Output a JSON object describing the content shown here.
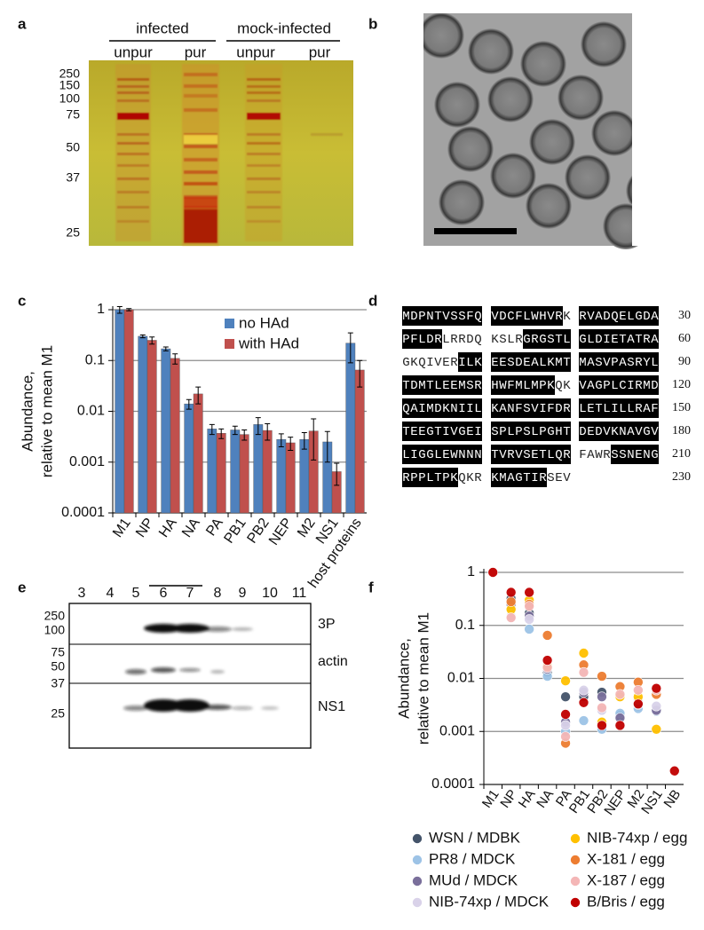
{
  "panel_labels": [
    "a",
    "b",
    "c",
    "d",
    "e",
    "f"
  ],
  "gel": {
    "groups": [
      "infected",
      "mock-infected"
    ],
    "lanes": [
      "unpur",
      "pur",
      "unpur",
      "pur"
    ],
    "markers": [
      250,
      150,
      100,
      75,
      50,
      37,
      25
    ]
  },
  "sequence": {
    "rows": [
      {
        "blocks": [
          "MDPNTVSSFQ",
          "VDCFLWHVRK",
          "RVADQELGDA"
        ],
        "number": 30
      },
      {
        "blocks": [
          "PFLDRLRRDQ",
          "KSLRGRGSTL",
          "GLDIETATRA"
        ],
        "number": 60
      },
      {
        "blocks": [
          "GKQIVERILK",
          "EESDEALKMT",
          "MASVPASRYL"
        ],
        "number": 90
      },
      {
        "blocks": [
          "TDMTLEEMSR",
          "HWFMLMPKQK",
          "VAGPLCIRMD"
        ],
        "number": 120
      },
      {
        "blocks": [
          "QAIMDKNIIL",
          "KANFSVIFDR",
          "LETLILLRAF"
        ],
        "number": 150
      },
      {
        "blocks": [
          "TEEGTIVGEI",
          "SPLPSLPGHT",
          "DEDVKNAVGV"
        ],
        "number": 180
      },
      {
        "blocks": [
          "LIGGLEWNNN",
          "TVRVSETLQR",
          "FAWRSSNENG"
        ],
        "number": 210
      },
      {
        "blocks": [
          "RPPLTPKQKR",
          "KMAGTIRSEV"
        ],
        "number": 230
      }
    ]
  },
  "blot": {
    "lanes": [
      3,
      4,
      5,
      6,
      7,
      8,
      9,
      10,
      11
    ],
    "markers": [
      250,
      100,
      75,
      50,
      37,
      25
    ],
    "labels": [
      "3P",
      "actin",
      "NS1"
    ]
  },
  "chart_data": [
    {
      "type": "bar",
      "ylabel": [
        "Abundance,",
        "relative to mean M1"
      ],
      "categories": [
        "M1",
        "NP",
        "HA",
        "NA",
        "PA",
        "PB1",
        "PB2",
        "NEP",
        "M2",
        "NS1",
        "host proteins"
      ],
      "series": [
        {
          "name": "no HAd",
          "color": "#4f81bd",
          "values": [
            1.0,
            0.3,
            0.17,
            0.014,
            0.0045,
            0.0043,
            0.0055,
            0.0028,
            0.0028,
            0.0025,
            0.22
          ],
          "errors": [
            0.15,
            0.02,
            0.015,
            0.003,
            0.001,
            0.0008,
            0.002,
            0.0008,
            0.001,
            0.0015,
            0.13
          ]
        },
        {
          "name": "with HAd",
          "color": "#c0504d",
          "values": [
            1.0,
            0.25,
            0.11,
            0.022,
            0.0037,
            0.0035,
            0.0042,
            0.0024,
            0.0041,
            0.00065,
            0.065
          ],
          "errors": [
            0.05,
            0.04,
            0.025,
            0.008,
            0.0008,
            0.0008,
            0.0015,
            0.0007,
            0.003,
            0.0003,
            0.035
          ]
        }
      ],
      "ylim": [
        0.0001,
        1
      ],
      "yticks": [
        0.0001,
        0.001,
        0.01,
        0.1,
        1
      ],
      "log_y": true,
      "grid": true,
      "legend": "upper right"
    },
    {
      "type": "scatter",
      "ylabel": [
        "Abundance,",
        "relative to mean M1"
      ],
      "categories": [
        "M1",
        "NP",
        "HA",
        "NA",
        "PA",
        "PB1",
        "PB2",
        "NEP",
        "M2",
        "NS1",
        "NB"
      ],
      "series": [
        {
          "name": "WSN / MDBK",
          "color": "#44546a",
          "values": [
            1,
            0.32,
            0.17,
            0.013,
            0.0045,
            0.0045,
            0.0055,
            0.002,
            0.003,
            0.0025,
            null
          ]
        },
        {
          "name": "PR8 / MDCK",
          "color": "#9dc3e6",
          "values": [
            1,
            0.2,
            0.085,
            0.011,
            0.001,
            0.0016,
            0.0011,
            0.0022,
            0.0027,
            0.0024,
            null
          ]
        },
        {
          "name": "MUd / MDCK",
          "color": "#7a6f9b",
          "values": [
            1,
            0.25,
            0.15,
            0.015,
            0.0015,
            0.0055,
            0.0045,
            0.0018,
            0.0032,
            0.0025,
            null
          ]
        },
        {
          "name": "NIB-74xp / MDCK",
          "color": "#d9d2e9",
          "values": [
            1,
            0.15,
            0.13,
            0.016,
            0.0013,
            0.006,
            0.0025,
            0.0045,
            0.004,
            0.003,
            null
          ]
        },
        {
          "name": "NIB-74xp / egg",
          "color": "#ffc000",
          "values": [
            1,
            0.2,
            0.3,
            0.017,
            0.009,
            0.03,
            0.0015,
            0.0045,
            0.0045,
            0.0011,
            null
          ]
        },
        {
          "name": "X-181 / egg",
          "color": "#ed7d31",
          "values": [
            1,
            0.28,
            0.25,
            0.065,
            0.0006,
            0.018,
            0.011,
            0.007,
            0.0085,
            0.005,
            null
          ]
        },
        {
          "name": "X-187 / egg",
          "color": "#f4b6b6",
          "values": [
            1,
            0.14,
            0.23,
            0.016,
            0.0008,
            0.013,
            0.0028,
            0.005,
            0.006,
            0.006,
            null
          ]
        },
        {
          "name": "B/Bris / egg",
          "color": "#c00000",
          "values": [
            1,
            0.42,
            0.42,
            0.022,
            0.0021,
            0.0035,
            0.0013,
            0.0013,
            0.0033,
            0.0065,
            0.00018
          ]
        }
      ],
      "ylim": [
        0.0001,
        1
      ],
      "yticks": [
        0.0001,
        0.001,
        0.01,
        0.1,
        1
      ],
      "log_y": true,
      "grid": true,
      "legend": "bottom"
    }
  ]
}
